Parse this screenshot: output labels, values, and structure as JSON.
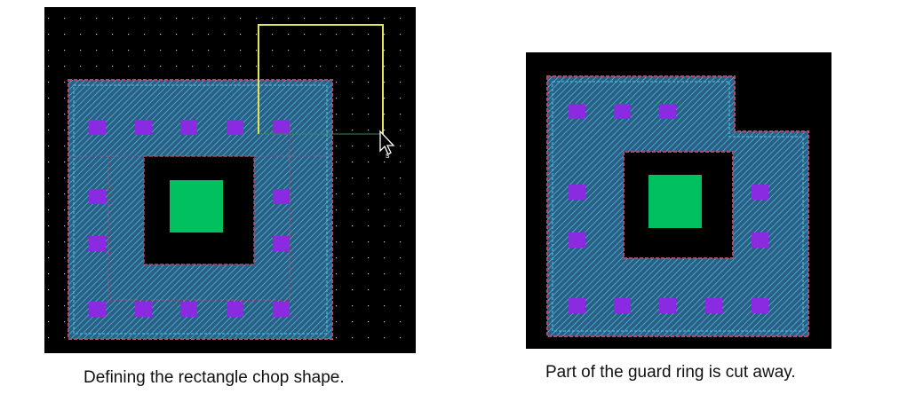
{
  "figures": [
    {
      "caption": "Defining the rectangle chop shape.",
      "description": "Guard ring layout with chop rectangle being drawn"
    },
    {
      "caption": "Part of the guard ring is cut away.",
      "description": "Guard ring layout after chop"
    }
  ],
  "colors": {
    "canvas_background": "#000000",
    "guard_ring_fill": "#2a5f86",
    "guard_ring_hatch": "#4fb6d6",
    "guard_ring_outline": "#b04a6a",
    "contact": "#8a2be2",
    "device_center": "#00c060",
    "chop_rectangle": "#e6e65a",
    "grid_dot": "#c8c8c8",
    "page_background": "#ffffff"
  },
  "icons": {
    "cursor": "arrow-pointer-icon"
  }
}
